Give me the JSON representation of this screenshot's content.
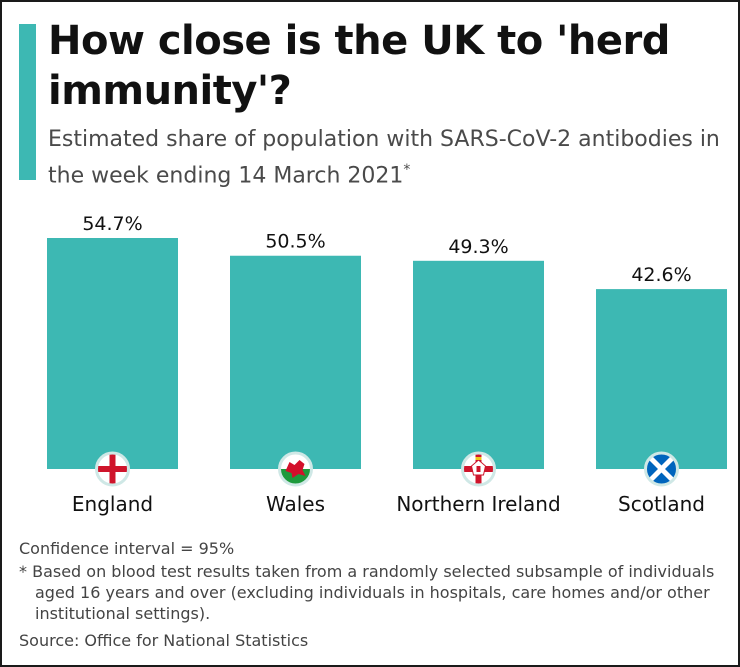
{
  "header": {
    "title": "How close is the UK to 'herd immunity'?",
    "subtitle": "Estimated share of population with SARS-CoV-2 antibodies in the week ending 14 March 2021",
    "subtitle_marker": "*"
  },
  "colors": {
    "bar": "#3db8b3",
    "accent": "#3db8b3",
    "text": "#111111"
  },
  "chart_data": {
    "type": "bar",
    "categories": [
      "England",
      "Wales",
      "Northern Ireland",
      "Scotland"
    ],
    "values": [
      54.7,
      50.5,
      49.3,
      42.6
    ],
    "value_labels": [
      "54.7%",
      "50.5%",
      "49.3%",
      "42.6%"
    ],
    "unit": "%",
    "title": "How close is the UK to 'herd immunity'?",
    "xlabel": "",
    "ylabel": "",
    "ylim": [
      0,
      54.7
    ],
    "grid": false,
    "legend": "none",
    "category_icons": [
      "england-flag-icon",
      "wales-flag-icon",
      "northern-ireland-flag-icon",
      "scotland-flag-icon"
    ]
  },
  "footer": {
    "confidence": "Confidence interval = 95%",
    "note": "* Based on blood test results taken from a randomly selected subsample of individuals aged 16 years and over (excluding individuals in hospitals, care homes and/or other institutional settings).",
    "source": "Source: Office for National Statistics"
  }
}
